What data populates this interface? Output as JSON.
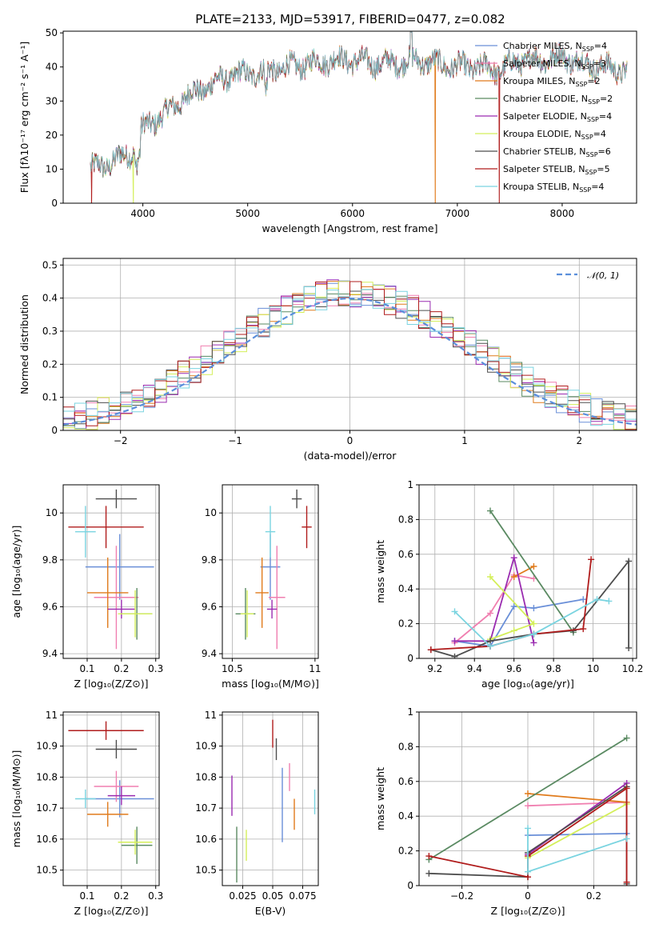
{
  "figure": {
    "title": "PLATE=2133, MJD=53917, FIBERID=0477, z=0.082",
    "colors": {
      "Chabrier MILES": "#6a8fd8",
      "Salpeter MILES": "#f07fb0",
      "Kroupa MILES": "#e07b1c",
      "Chabrier ELODIE": "#5a8a62",
      "Salpeter ELODIE": "#9a2bb0",
      "Kroupa ELODIE": "#d4ef5a",
      "Chabrier STELIB": "#4d4d4d",
      "Salpeter STELIB": "#b01c1c",
      "Kroupa STELIB": "#7ad4e0"
    }
  },
  "chart_data": [
    {
      "id": "spectrum",
      "type": "line",
      "xlabel": "wavelength [Angstrom, rest frame]",
      "ylabel": "Flux [fλ10⁻¹⁷ erg cm⁻² s⁻¹ A⁻¹]",
      "xlim": [
        3240,
        8710
      ],
      "ylim": [
        0,
        50.5
      ],
      "xticks": [
        4000,
        5000,
        6000,
        7000,
        8000
      ],
      "yticks": [
        0,
        10,
        20,
        30,
        40,
        50
      ],
      "legend_position": "top-right",
      "legend": [
        {
          "label": "Chabrier MILES, N",
          "sub": "SSP",
          "val": "=4"
        },
        {
          "label": "Salpeter MILES, N",
          "sub": "SSP",
          "val": "=3"
        },
        {
          "label": "Kroupa MILES, N",
          "sub": "SSP",
          "val": "=2"
        },
        {
          "label": "Chabrier ELODIE, N",
          "sub": "SSP",
          "val": "=2"
        },
        {
          "label": "Salpeter ELODIE, N",
          "sub": "SSP",
          "val": "=4"
        },
        {
          "label": "Kroupa ELODIE, N",
          "sub": "SSP",
          "val": "=4"
        },
        {
          "label": "Chabrier STELIB, N",
          "sub": "SSP",
          "val": "=6"
        },
        {
          "label": "Salpeter STELIB, N",
          "sub": "SSP",
          "val": "=5"
        },
        {
          "label": "Kroupa STELIB, N",
          "sub": "SSP",
          "val": "=4"
        }
      ],
      "envelope": [
        [
          3500,
          10
        ],
        [
          3700,
          12
        ],
        [
          3900,
          15
        ],
        [
          4000,
          22
        ],
        [
          4200,
          26
        ],
        [
          4400,
          31
        ],
        [
          4600,
          34
        ],
        [
          4800,
          37
        ],
        [
          5000,
          38
        ],
        [
          5200,
          39
        ],
        [
          5400,
          40
        ],
        [
          5600,
          41
        ],
        [
          5800,
          42
        ],
        [
          6000,
          42
        ],
        [
          6200,
          41
        ],
        [
          6400,
          41
        ],
        [
          6600,
          42
        ],
        [
          6800,
          41
        ],
        [
          7000,
          40
        ],
        [
          7200,
          40
        ],
        [
          7400,
          39
        ],
        [
          7600,
          42
        ],
        [
          7800,
          42
        ],
        [
          8000,
          43
        ],
        [
          8200,
          41
        ],
        [
          8400,
          40
        ],
        [
          8600,
          39
        ]
      ],
      "dips": [
        {
          "model": "Salpeter STELIB",
          "x": 3510
        },
        {
          "model": "Kroupa ELODIE",
          "x": 3910
        },
        {
          "model": "Kroupa MILES",
          "x": 6790
        },
        {
          "model": "Salpeter STELIB",
          "x": 7400
        }
      ]
    },
    {
      "id": "residuals",
      "type": "histogram",
      "xlabel": "(data-model)/error",
      "ylabel": "Normed distribution",
      "xlim": [
        -2.5,
        2.5
      ],
      "ylim": [
        0,
        0.52
      ],
      "xticks": [
        -2,
        -1,
        0,
        1,
        2
      ],
      "yticks": [
        0.0,
        0.1,
        0.2,
        0.3,
        0.4,
        0.5
      ],
      "grid": true,
      "bin_width": 0.1,
      "legend_position": "top-right",
      "reference": {
        "label": "𝒩(0, 1)",
        "mean": 0,
        "sigma": 1
      }
    },
    {
      "id": "age-vs-Z",
      "type": "errorbar",
      "xlabel": "Z [log₁₀(Z/Z⊙)]",
      "ylabel": "age  [log₁₀(age/yr)]",
      "xlim": [
        0.03,
        0.31
      ],
      "ylim": [
        9.38,
        10.12
      ],
      "xticks": [
        0.1,
        0.2,
        0.3
      ],
      "yticks": [
        9.4,
        9.6,
        9.8,
        10.0
      ],
      "grid": true,
      "points": [
        {
          "model": "Chabrier MILES",
          "x": 0.195,
          "xerr": 0.1,
          "y": 9.77,
          "yerr": 0.14
        },
        {
          "model": "Salpeter MILES",
          "x": 0.185,
          "xerr": 0.065,
          "y": 9.64,
          "yerr": 0.22
        },
        {
          "model": "Kroupa MILES",
          "x": 0.16,
          "xerr": 0.06,
          "y": 9.66,
          "yerr": 0.15
        },
        {
          "model": "Chabrier ELODIE",
          "x": 0.245,
          "xerr": 0.045,
          "y": 9.57,
          "yerr": 0.11
        },
        {
          "model": "Salpeter ELODIE",
          "x": 0.2,
          "xerr": 0.04,
          "y": 9.59,
          "yerr": 0.04
        },
        {
          "model": "Kroupa ELODIE",
          "x": 0.24,
          "xerr": 0.05,
          "y": 9.57,
          "yerr": 0.1
        },
        {
          "model": "Chabrier STELIB",
          "x": 0.185,
          "xerr": 0.06,
          "y": 10.06,
          "yerr": 0.04
        },
        {
          "model": "Salpeter STELIB",
          "x": 0.155,
          "xerr": 0.11,
          "y": 9.94,
          "yerr": 0.09
        },
        {
          "model": "Kroupa STELIB",
          "x": 0.095,
          "xerr": 0.03,
          "y": 9.92,
          "yerr": 0.11
        }
      ]
    },
    {
      "id": "age-vs-mass",
      "type": "errorbar",
      "xlabel": "mass [log₁₀(M/M⊙)]",
      "ylabel": "",
      "xlim": [
        10.44,
        11.02
      ],
      "ylim": [
        9.38,
        10.12
      ],
      "xticks": [
        10.5,
        11.0
      ],
      "yticks": [
        9.4,
        9.6,
        9.8,
        10.0
      ],
      "grid": true,
      "points": [
        {
          "model": "Chabrier MILES",
          "x": 10.73,
          "xerr": 0.06,
          "y": 9.77,
          "yerr": 0.14
        },
        {
          "model": "Salpeter MILES",
          "x": 10.77,
          "xerr": 0.05,
          "y": 9.64,
          "yerr": 0.22
        },
        {
          "model": "Kroupa MILES",
          "x": 10.68,
          "xerr": 0.04,
          "y": 9.66,
          "yerr": 0.15
        },
        {
          "model": "Chabrier ELODIE",
          "x": 10.58,
          "xerr": 0.06,
          "y": 9.57,
          "yerr": 0.11
        },
        {
          "model": "Salpeter ELODIE",
          "x": 10.74,
          "xerr": 0.03,
          "y": 9.59,
          "yerr": 0.04
        },
        {
          "model": "Kroupa ELODIE",
          "x": 10.59,
          "xerr": 0.04,
          "y": 9.57,
          "yerr": 0.1
        },
        {
          "model": "Chabrier STELIB",
          "x": 10.89,
          "xerr": 0.03,
          "y": 10.06,
          "yerr": 0.04
        },
        {
          "model": "Salpeter STELIB",
          "x": 10.95,
          "xerr": 0.03,
          "y": 9.94,
          "yerr": 0.09
        },
        {
          "model": "Kroupa STELIB",
          "x": 10.73,
          "xerr": 0.03,
          "y": 9.92,
          "yerr": 0.11
        }
      ]
    },
    {
      "id": "weight-vs-age",
      "type": "line",
      "xlabel": "age  [log₁₀(age/yr)]",
      "ylabel": "mass weight",
      "xlim": [
        9.12,
        10.22
      ],
      "ylim": [
        0,
        1
      ],
      "xticks": [
        9.2,
        9.4,
        9.6,
        9.8,
        10.0,
        10.2
      ],
      "yticks": [
        0.0,
        0.2,
        0.4,
        0.6,
        0.8,
        1.0
      ],
      "grid": true,
      "series": [
        {
          "model": "Chabrier MILES",
          "points": [
            [
              9.3,
              0.1
            ],
            [
              9.48,
              0.07
            ],
            [
              9.6,
              0.3
            ],
            [
              9.7,
              0.29
            ],
            [
              9.95,
              0.34
            ]
          ]
        },
        {
          "model": "Salpeter MILES",
          "points": [
            [
              9.3,
              0.09
            ],
            [
              9.48,
              0.26
            ],
            [
              9.6,
              0.48
            ],
            [
              9.7,
              0.46
            ]
          ]
        },
        {
          "model": "Kroupa MILES",
          "points": [
            [
              9.6,
              0.47
            ],
            [
              9.7,
              0.53
            ]
          ]
        },
        {
          "model": "Chabrier ELODIE",
          "points": [
            [
              9.48,
              0.85
            ],
            [
              9.9,
              0.15
            ]
          ]
        },
        {
          "model": "Salpeter ELODIE",
          "points": [
            [
              9.3,
              0.1
            ],
            [
              9.48,
              0.1
            ],
            [
              9.6,
              0.58
            ],
            [
              9.7,
              0.09
            ]
          ]
        },
        {
          "model": "Kroupa ELODIE",
          "points": [
            [
              9.48,
              0.11
            ],
            [
              9.6,
              0.16
            ],
            [
              9.7,
              0.2
            ],
            [
              9.48,
              0.47
            ]
          ]
        },
        {
          "model": "Chabrier STELIB",
          "points": [
            [
              9.18,
              0.05
            ],
            [
              9.3,
              0.01
            ],
            [
              9.48,
              0.1
            ],
            [
              9.7,
              0.14
            ],
            [
              9.9,
              0.16
            ],
            [
              10.18,
              0.56
            ],
            [
              10.18,
              0.06
            ]
          ]
        },
        {
          "model": "Salpeter STELIB",
          "points": [
            [
              9.18,
              0.05
            ],
            [
              9.48,
              0.07
            ],
            [
              9.7,
              0.14
            ],
            [
              9.95,
              0.17
            ],
            [
              9.99,
              0.57
            ]
          ]
        },
        {
          "model": "Kroupa STELIB",
          "points": [
            [
              9.3,
              0.27
            ],
            [
              9.48,
              0.07
            ],
            [
              9.7,
              0.14
            ],
            [
              10.02,
              0.34
            ],
            [
              10.08,
              0.33
            ]
          ]
        }
      ]
    },
    {
      "id": "mass-vs-Z",
      "type": "errorbar",
      "xlabel": "Z [log₁₀(Z/Z⊙)]",
      "ylabel": "mass [log₁₀(M/M⊙)]",
      "xlim": [
        0.03,
        0.31
      ],
      "ylim": [
        10.45,
        11.01
      ],
      "xticks": [
        0.1,
        0.2,
        0.3
      ],
      "yticks": [
        10.5,
        10.6,
        10.7,
        10.8,
        10.9,
        11.0
      ],
      "grid": true,
      "points": [
        {
          "model": "Chabrier MILES",
          "x": 0.195,
          "xerr": 0.1,
          "y": 10.73,
          "yerr": 0.06
        },
        {
          "model": "Salpeter MILES",
          "x": 0.185,
          "xerr": 0.065,
          "y": 10.77,
          "yerr": 0.05
        },
        {
          "model": "Kroupa MILES",
          "x": 0.16,
          "xerr": 0.06,
          "y": 10.68,
          "yerr": 0.04
        },
        {
          "model": "Chabrier ELODIE",
          "x": 0.245,
          "xerr": 0.045,
          "y": 10.58,
          "yerr": 0.06
        },
        {
          "model": "Salpeter ELODIE",
          "x": 0.2,
          "xerr": 0.04,
          "y": 10.74,
          "yerr": 0.03
        },
        {
          "model": "Kroupa ELODIE",
          "x": 0.24,
          "xerr": 0.05,
          "y": 10.59,
          "yerr": 0.04
        },
        {
          "model": "Chabrier STELIB",
          "x": 0.185,
          "xerr": 0.06,
          "y": 10.89,
          "yerr": 0.03
        },
        {
          "model": "Salpeter STELIB",
          "x": 0.155,
          "xerr": 0.11,
          "y": 10.95,
          "yerr": 0.03
        },
        {
          "model": "Kroupa STELIB",
          "x": 0.095,
          "xerr": 0.03,
          "y": 10.73,
          "yerr": 0.03
        }
      ]
    },
    {
      "id": "mass-vs-ebv",
      "type": "errorbar",
      "xlabel": "E(B-V)",
      "ylabel": "",
      "xlim": [
        0.008,
        0.088
      ],
      "ylim": [
        10.45,
        11.01
      ],
      "xticks": [
        0.025,
        0.05,
        0.075
      ],
      "yticks": [
        10.5,
        10.6,
        10.7,
        10.8,
        10.9,
        11.0
      ],
      "grid": true,
      "points": [
        {
          "model": "Chabrier MILES",
          "x": 0.058,
          "xerr": 0,
          "y": 10.71,
          "yerr": 0.12
        },
        {
          "model": "Salpeter MILES",
          "x": 0.064,
          "xerr": 0,
          "y": 10.8,
          "yerr": 0.045
        },
        {
          "model": "Kroupa MILES",
          "x": 0.068,
          "xerr": 0,
          "y": 10.68,
          "yerr": 0.05
        },
        {
          "model": "Chabrier ELODIE",
          "x": 0.02,
          "xerr": 0,
          "y": 10.55,
          "yerr": 0.09
        },
        {
          "model": "Salpeter ELODIE",
          "x": 0.016,
          "xerr": 0,
          "y": 10.74,
          "yerr": 0.065
        },
        {
          "model": "Kroupa ELODIE",
          "x": 0.028,
          "xerr": 0,
          "y": 10.58,
          "yerr": 0.05
        },
        {
          "model": "Chabrier STELIB",
          "x": 0.053,
          "xerr": 0,
          "y": 10.89,
          "yerr": 0.035
        },
        {
          "model": "Salpeter STELIB",
          "x": 0.05,
          "xerr": 0,
          "y": 10.94,
          "yerr": 0.045
        },
        {
          "model": "Kroupa STELIB",
          "x": 0.085,
          "xerr": 0,
          "y": 10.72,
          "yerr": 0.04
        }
      ]
    },
    {
      "id": "weight-vs-Z",
      "type": "line",
      "xlabel": "Z [log₁₀(Z/Z⊙)]",
      "ylabel": "mass weight",
      "xlim": [
        -0.33,
        0.33
      ],
      "ylim": [
        0,
        1
      ],
      "xticks": [
        -0.2,
        0.0,
        0.2
      ],
      "yticks": [
        0.0,
        0.2,
        0.4,
        0.6,
        0.8,
        1.0
      ],
      "grid": true,
      "series": [
        {
          "model": "Chabrier MILES",
          "points": [
            [
              0,
              0.29
            ],
            [
              0.3,
              0.3
            ]
          ]
        },
        {
          "model": "Salpeter MILES",
          "points": [
            [
              0,
              0.46
            ],
            [
              0.3,
              0.48
            ]
          ]
        },
        {
          "model": "Kroupa MILES",
          "points": [
            [
              0,
              0.53
            ],
            [
              0.3,
              0.48
            ]
          ]
        },
        {
          "model": "Chabrier ELODIE",
          "points": [
            [
              -0.3,
              0.15
            ],
            [
              0.3,
              0.85
            ]
          ]
        },
        {
          "model": "Salpeter ELODIE",
          "points": [
            [
              0,
              0.18
            ],
            [
              0.3,
              0.59
            ]
          ]
        },
        {
          "model": "Kroupa ELODIE",
          "points": [
            [
              0,
              0.16
            ],
            [
              0.3,
              0.47
            ]
          ]
        },
        {
          "model": "Chabrier STELIB",
          "points": [
            [
              -0.3,
              0.07
            ],
            [
              0,
              0.05
            ],
            [
              0,
              0.19
            ],
            [
              0.3,
              0.57
            ],
            [
              0.3,
              0.01
            ]
          ]
        },
        {
          "model": "Salpeter STELIB",
          "points": [
            [
              -0.3,
              0.17
            ],
            [
              0,
              0.05
            ],
            [
              0,
              0.17
            ],
            [
              0.3,
              0.56
            ],
            [
              0.3,
              0.02
            ]
          ]
        },
        {
          "model": "Kroupa STELIB",
          "points": [
            [
              0,
              0.33
            ],
            [
              0,
              0.08
            ],
            [
              0.3,
              0.27
            ]
          ]
        }
      ]
    }
  ]
}
